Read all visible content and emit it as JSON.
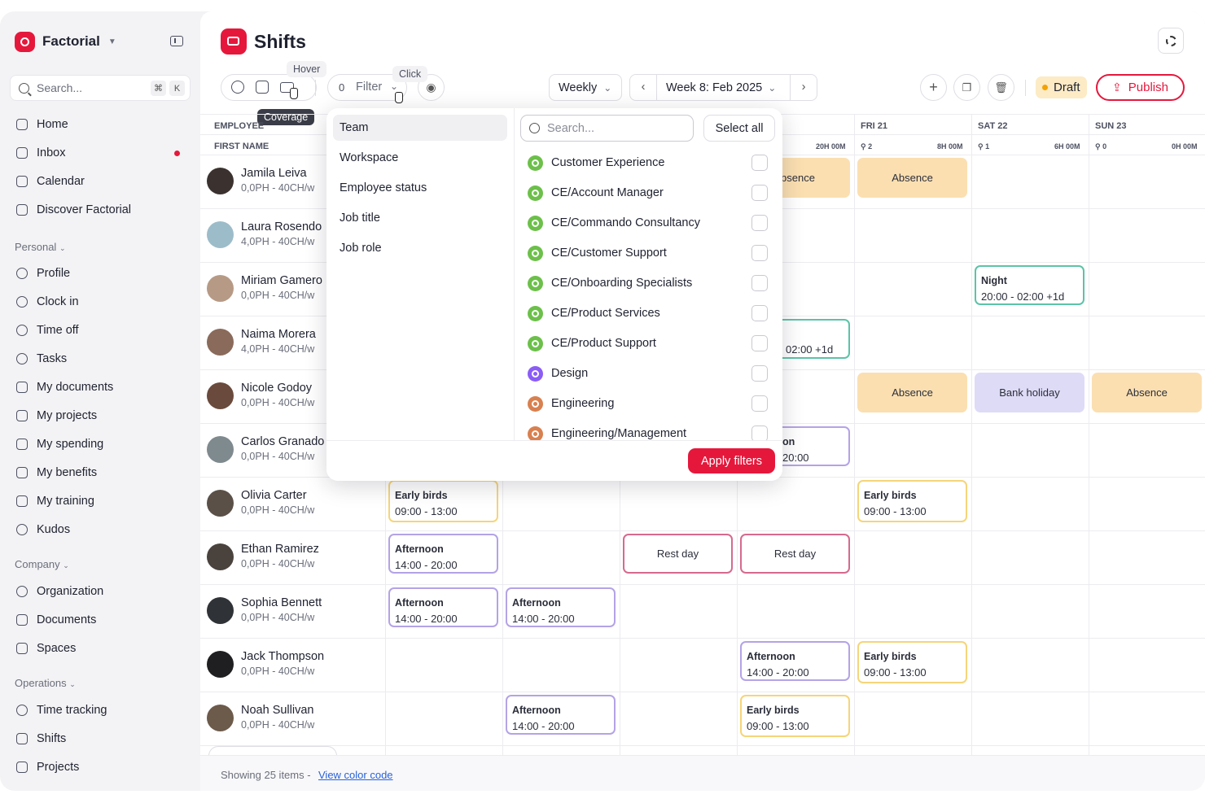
{
  "sidebar": {
    "brand": "Factorial",
    "search_placeholder": "Search...",
    "shortcut": [
      "⌘",
      "K"
    ],
    "items": [
      {
        "label": "Home"
      },
      {
        "label": "Inbox"
      },
      {
        "label": "Calendar"
      },
      {
        "label": "Discover Factorial"
      }
    ],
    "personal_label": "Personal",
    "personal": [
      {
        "label": "Profile"
      },
      {
        "label": "Clock in"
      },
      {
        "label": "Time off"
      },
      {
        "label": "Tasks"
      },
      {
        "label": "My documents"
      },
      {
        "label": "My projects"
      },
      {
        "label": "My spending"
      },
      {
        "label": "My benefits"
      },
      {
        "label": "My training"
      },
      {
        "label": "Kudos"
      }
    ],
    "company_label": "Company",
    "company": [
      {
        "label": "Organization"
      },
      {
        "label": "Documents"
      },
      {
        "label": "Spaces"
      }
    ],
    "operations_label": "Operations",
    "operations": [
      {
        "label": "Time tracking"
      },
      {
        "label": "Shifts"
      },
      {
        "label": "Projects"
      }
    ]
  },
  "header": {
    "title": "Shifts"
  },
  "toolbar": {
    "filter_count": "0",
    "filter_label": "Filter",
    "tooltip_hover": "Hover",
    "tooltip_click": "Click",
    "tooltip_coverage": "Coverage",
    "view_select": "Weekly",
    "week_label": "Week 8: Feb 2025",
    "status": "Draft",
    "publish_label": "Publish"
  },
  "grid": {
    "employee_header": "EMPLOYEE",
    "firstname_header": "FIRST NAME",
    "days": [
      {
        "label": "FRI 21",
        "people": "2",
        "hours": "8H 00M"
      },
      {
        "label": "SAT 22",
        "people": "1",
        "hours": "6H 00M"
      },
      {
        "label": "SUN 23",
        "people": "0",
        "hours": "0H 00M"
      }
    ],
    "thu_hours": "20H 00M",
    "employees": [
      {
        "name": "Jamila Leiva",
        "sub": "0,0PH - 40CH/w"
      },
      {
        "name": "Laura Rosendo",
        "sub": "4,0PH - 40CH/w"
      },
      {
        "name": "Miriam Gamero",
        "sub": "0,0PH - 40CH/w"
      },
      {
        "name": "Naima Morera",
        "sub": "4,0PH - 40CH/w"
      },
      {
        "name": "Nicole Godoy",
        "sub": "0,0PH - 40CH/w"
      },
      {
        "name": "Carlos Granado",
        "sub": "0,0PH - 40CH/w"
      },
      {
        "name": "Olivia Carter",
        "sub": "0,0PH - 40CH/w"
      },
      {
        "name": "Ethan Ramirez",
        "sub": "0,0PH - 40CH/w"
      },
      {
        "name": "Sophia Bennett",
        "sub": "0,0PH - 40CH/w"
      },
      {
        "name": "Jack Thompson",
        "sub": "0,0PH - 40CH/w"
      },
      {
        "name": "Noah Sullivan",
        "sub": "0,0PH - 40CH/w"
      }
    ],
    "cells": {
      "absence": "Absence",
      "absence_partial": "bsence",
      "bank_holiday": "Bank holiday",
      "rest_day": "Rest day",
      "night": "Night",
      "night_hours": "20:00 - 02:00 +1d",
      "night_partial_hours": "02:00 +1d",
      "afternoon_partial": "on",
      "afternoon_partial_hours": "20:00",
      "early": "Early birds",
      "early_hours": "09:00 - 13:00",
      "afternoon": "Afternoon",
      "afternoon_hours": "14:00 - 20:00"
    }
  },
  "footer": {
    "showing": "Showing 25 items -",
    "link": "View color code"
  },
  "filter_popover": {
    "categories": [
      "Team",
      "Workspace",
      "Employee status",
      "Job title",
      "Job role"
    ],
    "search_placeholder": "Search...",
    "select_all": "Select all",
    "options": [
      {
        "label": "Customer Experience",
        "color": "#6cc04a"
      },
      {
        "label": "CE/Account Manager",
        "color": "#6cc04a"
      },
      {
        "label": "CE/Commando Consultancy",
        "color": "#6cc04a"
      },
      {
        "label": "CE/Customer Support",
        "color": "#6cc04a"
      },
      {
        "label": "CE/Onboarding Specialists",
        "color": "#6cc04a"
      },
      {
        "label": "CE/Product Services",
        "color": "#6cc04a"
      },
      {
        "label": "CE/Product Support",
        "color": "#6cc04a"
      },
      {
        "label": "Design",
        "color": "#8b5cf6"
      },
      {
        "label": "Engineering",
        "color": "#d9804f"
      },
      {
        "label": "Engineering/Management",
        "color": "#d9804f"
      }
    ],
    "apply_label": "Apply filters"
  }
}
